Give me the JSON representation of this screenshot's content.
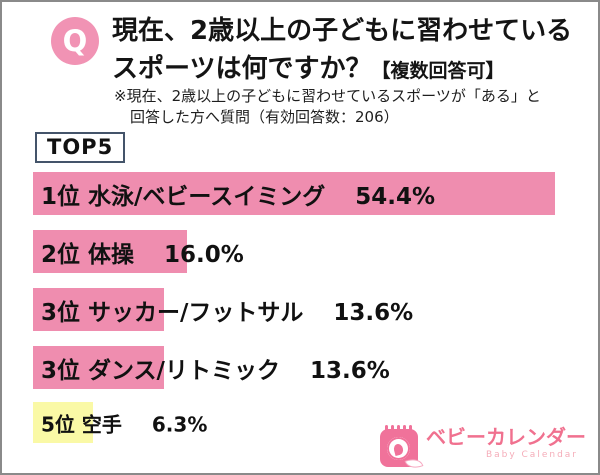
{
  "header": {
    "q_label": "Q",
    "title_line1": "現在、2歳以上の子どもに習わせている",
    "title_line2": "スポーツは何ですか？",
    "title_suffix": "【複数回答可】",
    "note_line1": "※現在、2歳以上の子どもに習わせているスポーツが「ある」と",
    "note_line2": "回答した方へ質問（有効回答数：206）"
  },
  "top5_label": "TOP5",
  "chart_data": {
    "type": "bar",
    "orientation": "horizontal",
    "title": "現在、2歳以上の子どもに習わせているスポーツは何ですか？【複数回答可】",
    "valid_responses": 206,
    "categories": [
      "水泳/ベビースイミング",
      "体操",
      "サッカー/フットサル",
      "ダンス/リトミック",
      "空手"
    ],
    "values": [
      54.4,
      16.0,
      13.6,
      13.6,
      6.3
    ],
    "value_unit": "%",
    "xlim": [
      0,
      57
    ],
    "legend": "none",
    "grid": false,
    "bars": [
      {
        "rank": "1位",
        "label": "1位 水泳/ベビースイミング",
        "pct_label": "54.4%",
        "value": 54.4,
        "color": "#ef8daf"
      },
      {
        "rank": "2位",
        "label": "2位 体操",
        "pct_label": "16.0%",
        "value": 16.0,
        "color": "#ef8daf"
      },
      {
        "rank": "3位",
        "label": "3位 サッカー/フットサル",
        "pct_label": "13.6%",
        "value": 13.6,
        "color": "#ef8daf"
      },
      {
        "rank": "3位",
        "label": "3位 ダンス/リトミック",
        "pct_label": "13.6%",
        "value": 13.6,
        "color": "#ef8daf"
      },
      {
        "rank": "5位",
        "label": "5位 空手",
        "pct_label": "6.3%",
        "value": 6.3,
        "color": "#faf9a6"
      }
    ]
  },
  "logo": {
    "name": "ベビーカレンダー",
    "subtitle": "Baby Calendar",
    "brand_color": "#f0718f"
  },
  "colors": {
    "bar_pink": "#ef8daf",
    "bar_yellow": "#faf9a6",
    "q_circle": "#f193b4",
    "top5_border": "#44546a"
  }
}
